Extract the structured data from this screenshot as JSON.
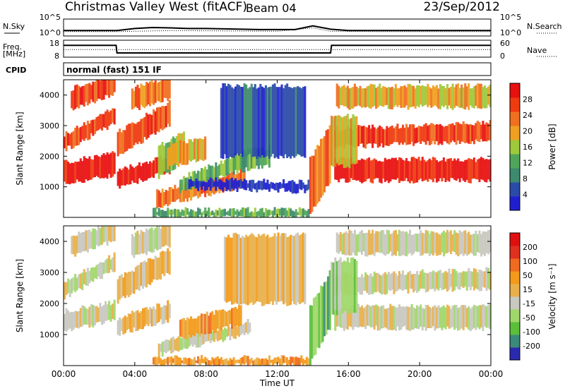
{
  "header": {
    "station": "Christmas Valley West (fitACF)",
    "beam": "Beam 04",
    "date": "23/Sep/2012"
  },
  "left_labels": {
    "nsky": "N.Sky",
    "freq": "Freq.",
    "freq_unit": "[MHz]",
    "cpid": "CPID"
  },
  "right_labels": {
    "nsearch": "N.Search",
    "nave": "Nave"
  },
  "cpid_text": "normal (fast) 151 IF",
  "colors": {
    "power_scale": [
      "#1f1fd0",
      "#2a4ca8",
      "#3d8a6e",
      "#4fa65a",
      "#9ec93a",
      "#f0a020",
      "#f07020",
      "#f03a10",
      "#e81010"
    ],
    "velocity_scale": [
      "#2a2ab0",
      "#3b8a7a",
      "#5bbf3a",
      "#9fd86a",
      "#c8c8c0",
      "#e8b04a",
      "#f39a1a",
      "#f06a20",
      "#e03020",
      "#e01010"
    ]
  },
  "chart_data": [
    {
      "type": "line",
      "panel": "noise",
      "series": [
        {
          "name": "N.Sky",
          "x": [
            0,
            1,
            2,
            3,
            4,
            5,
            6,
            7,
            8,
            9,
            10,
            11,
            12,
            13,
            14,
            15,
            16,
            17,
            18,
            19,
            20,
            21,
            22,
            23,
            24
          ],
          "y": [
            1.6,
            1.6,
            1.6,
            1.6,
            2.2,
            2.5,
            2.4,
            2.2,
            2.2,
            2.1,
            2.0,
            1.9,
            1.9,
            1.9,
            3.0,
            2.0,
            1.6,
            1.6,
            1.6,
            1.6,
            1.6,
            1.6,
            1.6,
            1.6,
            1.6
          ]
        },
        {
          "name": "N.Search",
          "x": [
            0,
            3,
            6,
            9,
            12,
            14,
            15,
            18,
            21,
            24
          ],
          "y": [
            1.3,
            1.3,
            1.6,
            1.5,
            1.4,
            2.4,
            1.4,
            1.3,
            1.3,
            1.3
          ]
        }
      ],
      "y_ticks": [
        "10^5",
        "10^0"
      ]
    },
    {
      "type": "line",
      "panel": "frequency",
      "series": [
        {
          "name": "Freq.",
          "x": [
            0,
            2.95,
            3.0,
            15.0,
            15.05,
            24
          ],
          "y": [
            15,
            15,
            10.5,
            10.5,
            15,
            15
          ]
        },
        {
          "name": "Nave",
          "x": [
            0,
            24
          ],
          "y": [
            12.5,
            12.5
          ]
        }
      ],
      "y_ticks_left": [
        "18",
        "8"
      ],
      "y_ticks_right": [
        "60",
        "0"
      ]
    },
    {
      "type": "heatmap",
      "panel": "power",
      "ylabel": "Slant Range [km]",
      "ylim": [
        0,
        4500
      ],
      "y_ticks": [
        "1000",
        "2000",
        "3000",
        "4000"
      ],
      "colorbar_label": "Power [dB]",
      "colorbar_ticks": [
        "28",
        "24",
        "20",
        "16",
        "12",
        "8",
        "4"
      ],
      "bands": [
        {
          "t0": 0.0,
          "t1": 2.9,
          "r0": 1250,
          "r1": 1950,
          "c": 8,
          "slope": 300
        },
        {
          "t0": 0.0,
          "t1": 2.9,
          "r0": 2650,
          "r1": 3150,
          "c": 7,
          "slope": 900
        },
        {
          "t0": 0.4,
          "t1": 2.9,
          "r0": 3800,
          "r1": 4450,
          "c": 7,
          "slope": 500
        },
        {
          "t0": 3.0,
          "t1": 6.0,
          "r0": 1250,
          "r1": 1800,
          "c": 8,
          "slope": 500
        },
        {
          "t0": 3.0,
          "t1": 6.0,
          "r0": 2550,
          "r1": 3300,
          "c": 7,
          "slope": 1000
        },
        {
          "t0": 3.8,
          "t1": 6.0,
          "r0": 3700,
          "r1": 4400,
          "c": 6,
          "slope": 400
        },
        {
          "t0": 5.3,
          "t1": 6.8,
          "r0": 1600,
          "r1": 2600,
          "c": 4,
          "slope": 600
        },
        {
          "t0": 5.8,
          "t1": 8.0,
          "r0": 1800,
          "r1": 2500,
          "c": 5,
          "slope": 300
        },
        {
          "t0": 5.2,
          "t1": 10.2,
          "r0": 700,
          "r1": 1200,
          "c": 6,
          "slope": 700
        },
        {
          "t0": 6.5,
          "t1": 10.2,
          "r0": 1200,
          "r1": 1700,
          "c": 3,
          "slope": 800
        },
        {
          "t0": 9.5,
          "t1": 11.6,
          "r0": 1600,
          "r1": 2200,
          "c": 3,
          "slope": 200
        },
        {
          "t0": 7.0,
          "t1": 13.8,
          "r0": 900,
          "r1": 1200,
          "c": 0,
          "slope": -100
        },
        {
          "t0": 8.8,
          "t1": 13.6,
          "r0": 2000,
          "r1": 4300,
          "c": 1,
          "slope": 0
        },
        {
          "t0": 5.0,
          "t1": 13.8,
          "r0": 0,
          "r1": 250,
          "c": 3,
          "slope": 0
        },
        {
          "t0": 13.8,
          "t1": 15.0,
          "r0": 700,
          "r1": 2500,
          "c": 6,
          "slope": 1200
        },
        {
          "t0": 15.2,
          "t1": 24.0,
          "r0": 1200,
          "r1": 1900,
          "c": 8,
          "slope": 0
        },
        {
          "t0": 15.2,
          "t1": 24.0,
          "r0": 2400,
          "r1": 3000,
          "c": 7,
          "slope": 200
        },
        {
          "t0": 15.3,
          "t1": 24.0,
          "r0": 3600,
          "r1": 4300,
          "c": 5,
          "slope": 0
        },
        {
          "t0": 15.0,
          "t1": 16.5,
          "r0": 1700,
          "r1": 3300,
          "c": 5,
          "slope": 0
        }
      ]
    },
    {
      "type": "heatmap",
      "panel": "velocity",
      "ylabel": "Slant Range [km]",
      "xlabel": "Time UT",
      "ylim": [
        0,
        4500
      ],
      "y_ticks": [
        "1000",
        "2000",
        "3000",
        "4000"
      ],
      "x_ticks": [
        "00:00",
        "04:00",
        "08:00",
        "12:00",
        "16:00",
        "20:00",
        "00:00"
      ],
      "colorbar_label": "Velocity [m s⁻¹]",
      "colorbar_ticks": [
        "200",
        "100",
        "50",
        "15",
        "-15",
        "-50",
        "-100",
        "-200"
      ],
      "bands": [
        {
          "t0": 0.0,
          "t1": 2.9,
          "r0": 1300,
          "r1": 1900,
          "c": 4,
          "slope": 300
        },
        {
          "t0": 0.0,
          "t1": 2.9,
          "r0": 2650,
          "r1": 3150,
          "c": 4,
          "slope": 900
        },
        {
          "t0": 0.4,
          "t1": 2.9,
          "r0": 3800,
          "r1": 4400,
          "c": 4,
          "slope": 500
        },
        {
          "t0": 3.0,
          "t1": 6.0,
          "r0": 1250,
          "r1": 1800,
          "c": 5,
          "slope": 500
        },
        {
          "t0": 3.0,
          "t1": 6.0,
          "r0": 2550,
          "r1": 3300,
          "c": 5,
          "slope": 1000
        },
        {
          "t0": 3.8,
          "t1": 6.0,
          "r0": 3700,
          "r1": 4400,
          "c": 4,
          "slope": 400
        },
        {
          "t0": 5.3,
          "t1": 10.5,
          "r0": 700,
          "r1": 1100,
          "c": 4,
          "slope": 700
        },
        {
          "t0": 6.5,
          "t1": 10.0,
          "r0": 1100,
          "r1": 1700,
          "c": 6,
          "slope": 500
        },
        {
          "t0": 9.0,
          "t1": 13.6,
          "r0": 2000,
          "r1": 4200,
          "c": 5,
          "slope": 0
        },
        {
          "t0": 5.0,
          "t1": 13.8,
          "r0": 0,
          "r1": 250,
          "c": 6,
          "slope": 0
        },
        {
          "t0": 13.8,
          "t1": 15.0,
          "r0": 700,
          "r1": 2500,
          "c": 2,
          "slope": 1200
        },
        {
          "t0": 15.2,
          "t1": 24.0,
          "r0": 1200,
          "r1": 1900,
          "c": 4,
          "slope": 0
        },
        {
          "t0": 15.2,
          "t1": 24.0,
          "r0": 2400,
          "r1": 3000,
          "c": 4,
          "slope": 200
        },
        {
          "t0": 15.3,
          "t1": 24.0,
          "r0": 3600,
          "r1": 4300,
          "c": 4,
          "slope": 0
        },
        {
          "t0": 15.0,
          "t1": 16.5,
          "r0": 1700,
          "r1": 3400,
          "c": 3,
          "slope": 0
        }
      ]
    }
  ]
}
